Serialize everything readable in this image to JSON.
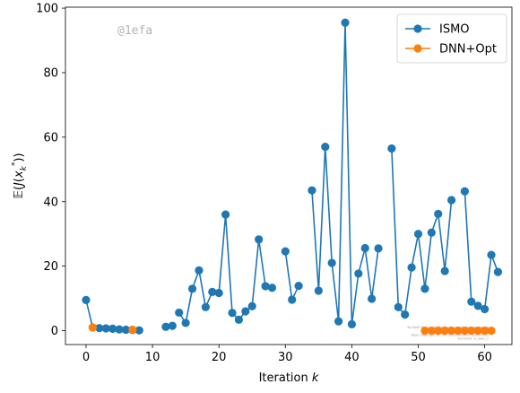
{
  "chart_data": {
    "type": "line",
    "xlabel": "Iteration k",
    "ylabel": "E(J(x_k*))",
    "xlim": [
      -3.1,
      64.1
    ],
    "ylim": [
      -4.3,
      100.3
    ],
    "xticks": [
      0,
      10,
      20,
      30,
      40,
      50,
      60
    ],
    "yticks": [
      0,
      20,
      40,
      60,
      80,
      100
    ],
    "legend_position": "top-right",
    "watermark": "@1efa",
    "footnote": [
      "By Djotil Stun Lyn @ ETH Zurich s.lye@gmail.com and Dj",
      "Commit: 1efa fix",
      "Repo: https://github.com/sjorell/optimum_bailetum.git",
      "Username: ss_login_cl"
    ],
    "series": [
      {
        "name": "ISMO",
        "color": "#1f77b4",
        "segments": [
          {
            "x": [
              0,
              1,
              2,
              3,
              4,
              5,
              6,
              7,
              8
            ],
            "y": [
              9.5,
              1.0,
              0.8,
              0.7,
              0.6,
              0.4,
              0.3,
              0.2,
              0.1
            ]
          },
          {
            "x": [
              12,
              13
            ],
            "y": [
              1.2,
              1.5
            ]
          },
          {
            "x": [
              14,
              15,
              16,
              17,
              18,
              19,
              20,
              21,
              22,
              23,
              24,
              25,
              26,
              27,
              28
            ],
            "y": [
              5.6,
              2.4,
              13.0,
              18.7,
              7.3,
              12.0,
              11.7,
              36.0,
              5.5,
              3.4,
              6.0,
              7.6,
              28.3,
              13.8,
              13.3
            ]
          },
          {
            "x": [
              30,
              31,
              32
            ],
            "y": [
              24.6,
              9.6,
              13.9
            ]
          },
          {
            "x": [
              34,
              35,
              36,
              37,
              38,
              39,
              40,
              41,
              42,
              43,
              44
            ],
            "y": [
              43.5,
              12.4,
              57.0,
              21.0,
              2.9,
              95.5,
              2.0,
              17.7,
              25.6,
              9.9,
              25.5
            ]
          },
          {
            "x": [
              46,
              47,
              48,
              49,
              50,
              51,
              52,
              53,
              54,
              55
            ],
            "y": [
              56.5,
              7.3,
              5.0,
              19.6,
              30.0,
              13.0,
              30.4,
              36.2,
              18.5,
              40.5
            ]
          },
          {
            "x": [
              57,
              58,
              59,
              60,
              61,
              62
            ],
            "y": [
              43.2,
              9.0,
              7.7,
              6.7,
              23.5,
              18.2
            ]
          }
        ]
      },
      {
        "name": "DNN+Opt",
        "color": "#ff7f0e",
        "segments": [
          {
            "x": [
              1
            ],
            "y": [
              1.0
            ]
          },
          {
            "x": [
              7
            ],
            "y": [
              0.3
            ]
          },
          {
            "x": [
              51,
              52,
              53,
              54,
              55,
              56,
              57,
              58,
              59,
              60,
              61
            ],
            "y": [
              0.0,
              0.0,
              0.0,
              0.0,
              0.0,
              0.0,
              0.0,
              0.0,
              0.0,
              0.0,
              0.0
            ]
          }
        ]
      }
    ]
  }
}
